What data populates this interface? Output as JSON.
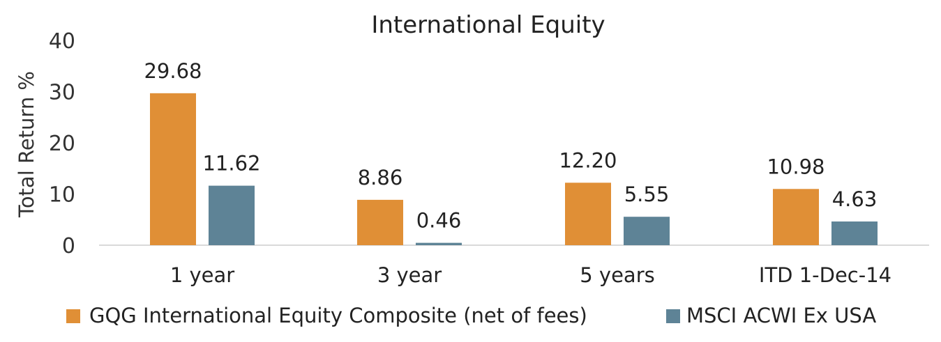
{
  "chart_data": {
    "type": "bar",
    "title": "International Equity",
    "xlabel": "",
    "ylabel": "Total Return %",
    "ylim": [
      0,
      40
    ],
    "yticks": [
      0,
      10,
      20,
      30,
      40
    ],
    "categories": [
      "1 year",
      "3 year",
      "5 years",
      "ITD 1-Dec-14"
    ],
    "series": [
      {
        "name": "GQG International Equity Composite (net of fees)",
        "values": [
          29.68,
          8.86,
          12.2,
          10.98
        ],
        "labels": [
          "29.68",
          "8.86",
          "12.20",
          "10.98"
        ],
        "color": "#E08F36"
      },
      {
        "name": "MSCI ACWI Ex USA",
        "values": [
          11.62,
          0.46,
          5.55,
          4.63
        ],
        "labels": [
          "11.62",
          "0.46",
          "5.55",
          "4.63"
        ],
        "color": "#5E8396"
      }
    ],
    "grid": false,
    "legend_position": "bottom"
  }
}
